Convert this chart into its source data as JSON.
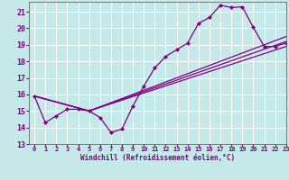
{
  "xlabel": "Windchill (Refroidissement éolien,°C)",
  "background_color": "#c5e8e8",
  "grid_color": "#ffffff",
  "line_color": "#800080",
  "xlim": [
    -0.5,
    23
  ],
  "ylim": [
    13,
    21.6
  ],
  "xticks": [
    0,
    1,
    2,
    3,
    4,
    5,
    6,
    7,
    8,
    9,
    10,
    11,
    12,
    13,
    14,
    15,
    16,
    17,
    18,
    19,
    20,
    21,
    22,
    23
  ],
  "yticks": [
    13,
    14,
    15,
    16,
    17,
    18,
    19,
    20,
    21
  ],
  "series": [
    {
      "x": [
        0,
        1,
        2,
        3,
        4,
        5,
        6,
        7,
        8,
        9,
        10,
        11,
        12,
        13,
        14,
        15,
        16,
        17,
        18,
        19,
        20,
        21,
        22,
        23
      ],
      "y": [
        15.9,
        14.3,
        14.7,
        15.1,
        15.1,
        15.0,
        14.6,
        13.7,
        13.9,
        15.3,
        16.5,
        17.6,
        18.3,
        18.7,
        19.1,
        20.3,
        20.65,
        21.4,
        21.25,
        21.3,
        20.05,
        18.9,
        18.9,
        19.1
      ],
      "marker": true
    },
    {
      "x": [
        0,
        5,
        23
      ],
      "y": [
        15.9,
        15.0,
        18.9
      ],
      "marker": false
    },
    {
      "x": [
        0,
        5,
        23
      ],
      "y": [
        15.9,
        15.0,
        19.5
      ],
      "marker": false
    },
    {
      "x": [
        0,
        5,
        23
      ],
      "y": [
        15.9,
        15.0,
        19.2
      ],
      "marker": false
    }
  ]
}
